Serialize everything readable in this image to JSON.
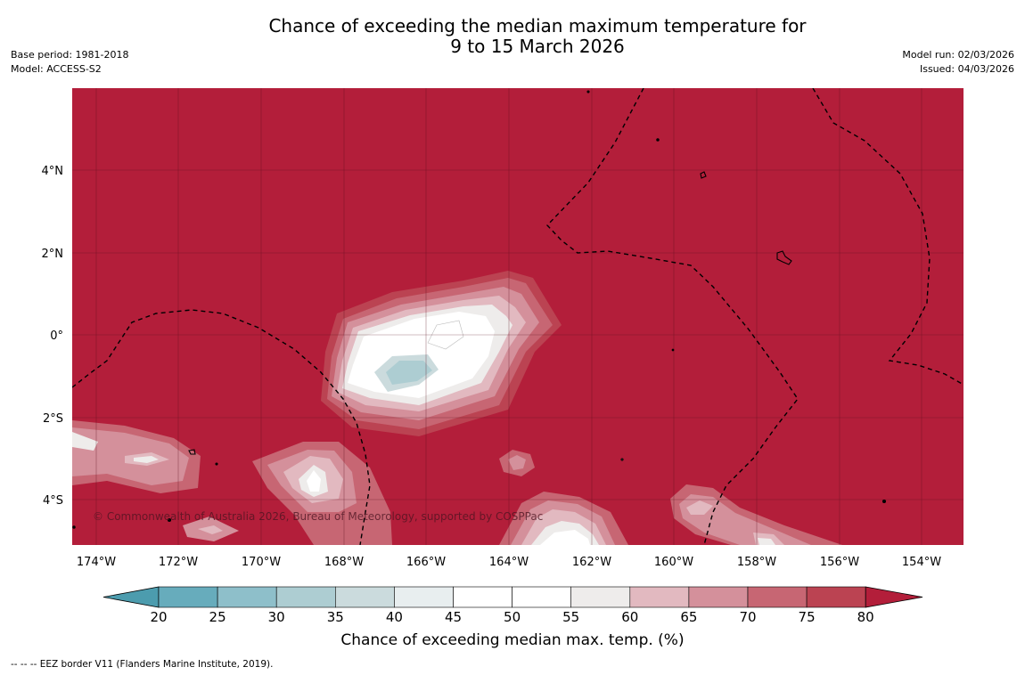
{
  "header": {
    "title_line1": "Chance of exceeding the median maximum temperature for",
    "title_line2": "9 to 15 March 2026",
    "base_period": "Base period: 1981-2018",
    "model": "Model: ACCESS-S2",
    "model_run": "Model run: 02/03/2026",
    "issued": "Issued: 04/03/2026"
  },
  "map": {
    "copyright": "© Commonwealth of Australia 2026, Bureau of Meteorology, supported by COSPPac",
    "lon_labels": [
      "174°W",
      "172°W",
      "170°W",
      "168°W",
      "166°W",
      "164°W",
      "162°W",
      "160°W",
      "158°W",
      "156°W",
      "154°W"
    ],
    "lat_labels": [
      "4°N",
      "2°N",
      "0°",
      "2°S",
      "4°S"
    ],
    "background_color": "#b31e3a"
  },
  "colorbar": {
    "ticks": [
      "20",
      "25",
      "30",
      "35",
      "40",
      "45",
      "50",
      "55",
      "60",
      "65",
      "70",
      "75",
      "80"
    ],
    "colors": [
      "#67acbc",
      "#8ebfca",
      "#adcdd2",
      "#cbdbdd",
      "#e8eeef",
      "#ffffff",
      "#ffffff",
      "#eeeceb",
      "#e2b9c0",
      "#d4909b",
      "#c76673",
      "#bb4352"
    ],
    "under_color": "#4c9cae",
    "over_color": "#b31e3a",
    "label": "Chance of exceeding median max. temp. (%)"
  },
  "footnote": "--  --  -- EEZ border V11 (Flanders Marine Institute, 2019)."
}
